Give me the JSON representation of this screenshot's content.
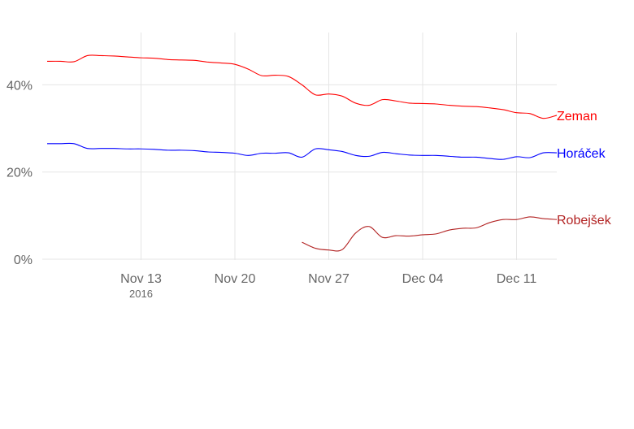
{
  "chart_data": {
    "type": "line",
    "title": "",
    "xlabel": "",
    "ylabel": "",
    "grid": true,
    "legend": "direct-labels-right",
    "xlim": [
      "2016-11-06",
      "2016-12-14"
    ],
    "ylim": [
      0,
      52
    ],
    "x_ticks": [
      {
        "date": "2016-11-13",
        "label": "Nov 13",
        "sublabel": "2016"
      },
      {
        "date": "2016-11-20",
        "label": "Nov 20",
        "sublabel": ""
      },
      {
        "date": "2016-11-27",
        "label": "Nov 27",
        "sublabel": ""
      },
      {
        "date": "2016-12-04",
        "label": "Dec 04",
        "sublabel": ""
      },
      {
        "date": "2016-12-11",
        "label": "Dec 11",
        "sublabel": ""
      }
    ],
    "y_ticks": [
      {
        "value": 0,
        "label": "0%"
      },
      {
        "value": 20,
        "label": "20%"
      },
      {
        "value": 40,
        "label": "40%"
      }
    ],
    "series": [
      {
        "name": "Zeman",
        "color": "#ff0000",
        "points": [
          [
            "2016-11-06",
            45.4
          ],
          [
            "2016-11-07",
            45.4
          ],
          [
            "2016-11-08",
            45.3
          ],
          [
            "2016-11-09",
            46.7
          ],
          [
            "2016-11-10",
            46.7
          ],
          [
            "2016-11-11",
            46.6
          ],
          [
            "2016-11-12",
            46.4
          ],
          [
            "2016-11-13",
            46.2
          ],
          [
            "2016-11-14",
            46.1
          ],
          [
            "2016-11-15",
            45.8
          ],
          [
            "2016-11-16",
            45.7
          ],
          [
            "2016-11-17",
            45.6
          ],
          [
            "2016-11-18",
            45.2
          ],
          [
            "2016-11-19",
            45.0
          ],
          [
            "2016-11-20",
            44.7
          ],
          [
            "2016-11-21",
            43.6
          ],
          [
            "2016-11-22",
            42.1
          ],
          [
            "2016-11-23",
            42.2
          ],
          [
            "2016-11-24",
            41.9
          ],
          [
            "2016-11-25",
            40.0
          ],
          [
            "2016-11-26",
            37.7
          ],
          [
            "2016-11-27",
            37.9
          ],
          [
            "2016-11-28",
            37.4
          ],
          [
            "2016-11-29",
            35.8
          ],
          [
            "2016-11-30",
            35.3
          ],
          [
            "2016-12-01",
            36.6
          ],
          [
            "2016-12-02",
            36.3
          ],
          [
            "2016-12-03",
            35.8
          ],
          [
            "2016-12-04",
            35.7
          ],
          [
            "2016-12-05",
            35.6
          ],
          [
            "2016-12-06",
            35.3
          ],
          [
            "2016-12-07",
            35.1
          ],
          [
            "2016-12-08",
            35.0
          ],
          [
            "2016-12-09",
            34.7
          ],
          [
            "2016-12-10",
            34.3
          ],
          [
            "2016-12-11",
            33.6
          ],
          [
            "2016-12-12",
            33.4
          ],
          [
            "2016-12-13",
            32.3
          ],
          [
            "2016-12-14",
            33.0
          ]
        ]
      },
      {
        "name": "Horáček",
        "color": "#0000ff",
        "points": [
          [
            "2016-11-06",
            26.5
          ],
          [
            "2016-11-07",
            26.5
          ],
          [
            "2016-11-08",
            26.5
          ],
          [
            "2016-11-09",
            25.4
          ],
          [
            "2016-11-10",
            25.4
          ],
          [
            "2016-11-11",
            25.4
          ],
          [
            "2016-11-12",
            25.3
          ],
          [
            "2016-11-13",
            25.3
          ],
          [
            "2016-11-14",
            25.2
          ],
          [
            "2016-11-15",
            25.0
          ],
          [
            "2016-11-16",
            25.0
          ],
          [
            "2016-11-17",
            24.9
          ],
          [
            "2016-11-18",
            24.6
          ],
          [
            "2016-11-19",
            24.5
          ],
          [
            "2016-11-20",
            24.3
          ],
          [
            "2016-11-21",
            23.8
          ],
          [
            "2016-11-22",
            24.3
          ],
          [
            "2016-11-23",
            24.3
          ],
          [
            "2016-11-24",
            24.4
          ],
          [
            "2016-11-25",
            23.4
          ],
          [
            "2016-11-26",
            25.3
          ],
          [
            "2016-11-27",
            25.1
          ],
          [
            "2016-11-28",
            24.7
          ],
          [
            "2016-11-29",
            23.8
          ],
          [
            "2016-11-30",
            23.6
          ],
          [
            "2016-12-01",
            24.5
          ],
          [
            "2016-12-02",
            24.2
          ],
          [
            "2016-12-03",
            23.9
          ],
          [
            "2016-12-04",
            23.8
          ],
          [
            "2016-12-05",
            23.8
          ],
          [
            "2016-12-06",
            23.6
          ],
          [
            "2016-12-07",
            23.4
          ],
          [
            "2016-12-08",
            23.4
          ],
          [
            "2016-12-09",
            23.1
          ],
          [
            "2016-12-10",
            22.9
          ],
          [
            "2016-12-11",
            23.5
          ],
          [
            "2016-12-12",
            23.3
          ],
          [
            "2016-12-13",
            24.4
          ],
          [
            "2016-12-14",
            24.4
          ]
        ]
      },
      {
        "name": "Robejšek",
        "color": "#b22222",
        "points": [
          [
            "2016-11-25",
            3.9
          ],
          [
            "2016-11-26",
            2.5
          ],
          [
            "2016-11-27",
            2.1
          ],
          [
            "2016-11-28",
            2.2
          ],
          [
            "2016-11-29",
            6.0
          ],
          [
            "2016-11-30",
            7.5
          ],
          [
            "2016-12-01",
            5.0
          ],
          [
            "2016-12-02",
            5.4
          ],
          [
            "2016-12-03",
            5.3
          ],
          [
            "2016-12-04",
            5.6
          ],
          [
            "2016-12-05",
            5.8
          ],
          [
            "2016-12-06",
            6.7
          ],
          [
            "2016-12-07",
            7.1
          ],
          [
            "2016-12-08",
            7.2
          ],
          [
            "2016-12-09",
            8.4
          ],
          [
            "2016-12-10",
            9.1
          ],
          [
            "2016-12-11",
            9.1
          ],
          [
            "2016-12-12",
            9.7
          ],
          [
            "2016-12-13",
            9.3
          ],
          [
            "2016-12-14",
            9.1
          ]
        ]
      }
    ]
  }
}
